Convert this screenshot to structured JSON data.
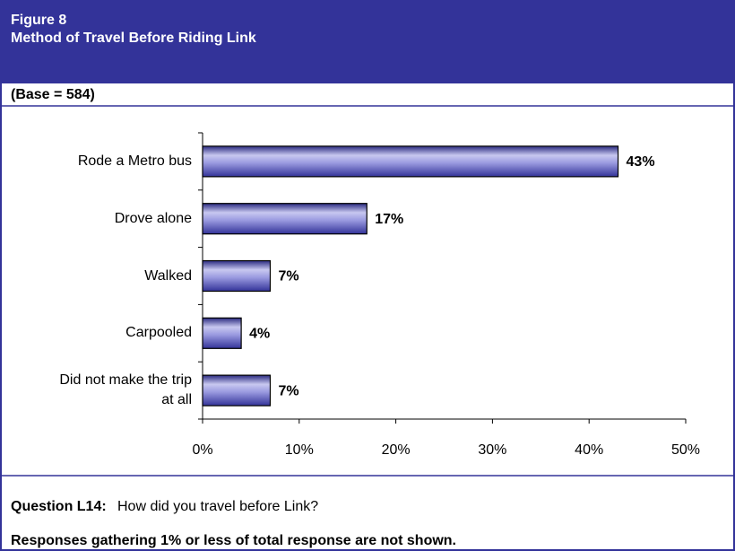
{
  "chart_data": {
    "type": "bar",
    "orientation": "horizontal",
    "figure_label": "Figure 8",
    "title": "Method of Travel Before Riding Link",
    "subtitle": "(Base = 584)",
    "categories": [
      "Rode a Metro bus",
      "Drove alone",
      "Walked",
      "Carpooled",
      "Did not make the trip at all"
    ],
    "values": [
      43,
      17,
      7,
      4,
      7
    ],
    "value_labels": [
      "43%",
      "17%",
      "7%",
      "4%",
      "7%"
    ],
    "color": "#6666cc",
    "xlim": [
      0,
      50
    ],
    "xticks": [
      {
        "value": 0,
        "label": "0%"
      },
      {
        "value": 10,
        "label": "10%"
      },
      {
        "value": 20,
        "label": "20%"
      },
      {
        "value": 30,
        "label": "30%"
      },
      {
        "value": 40,
        "label": "40%"
      },
      {
        "value": 50,
        "label": "50%"
      }
    ],
    "question_label": "Question L14:",
    "question": "How did you travel before Link?",
    "note": "Responses gathering 1% or less of total response are not shown."
  }
}
